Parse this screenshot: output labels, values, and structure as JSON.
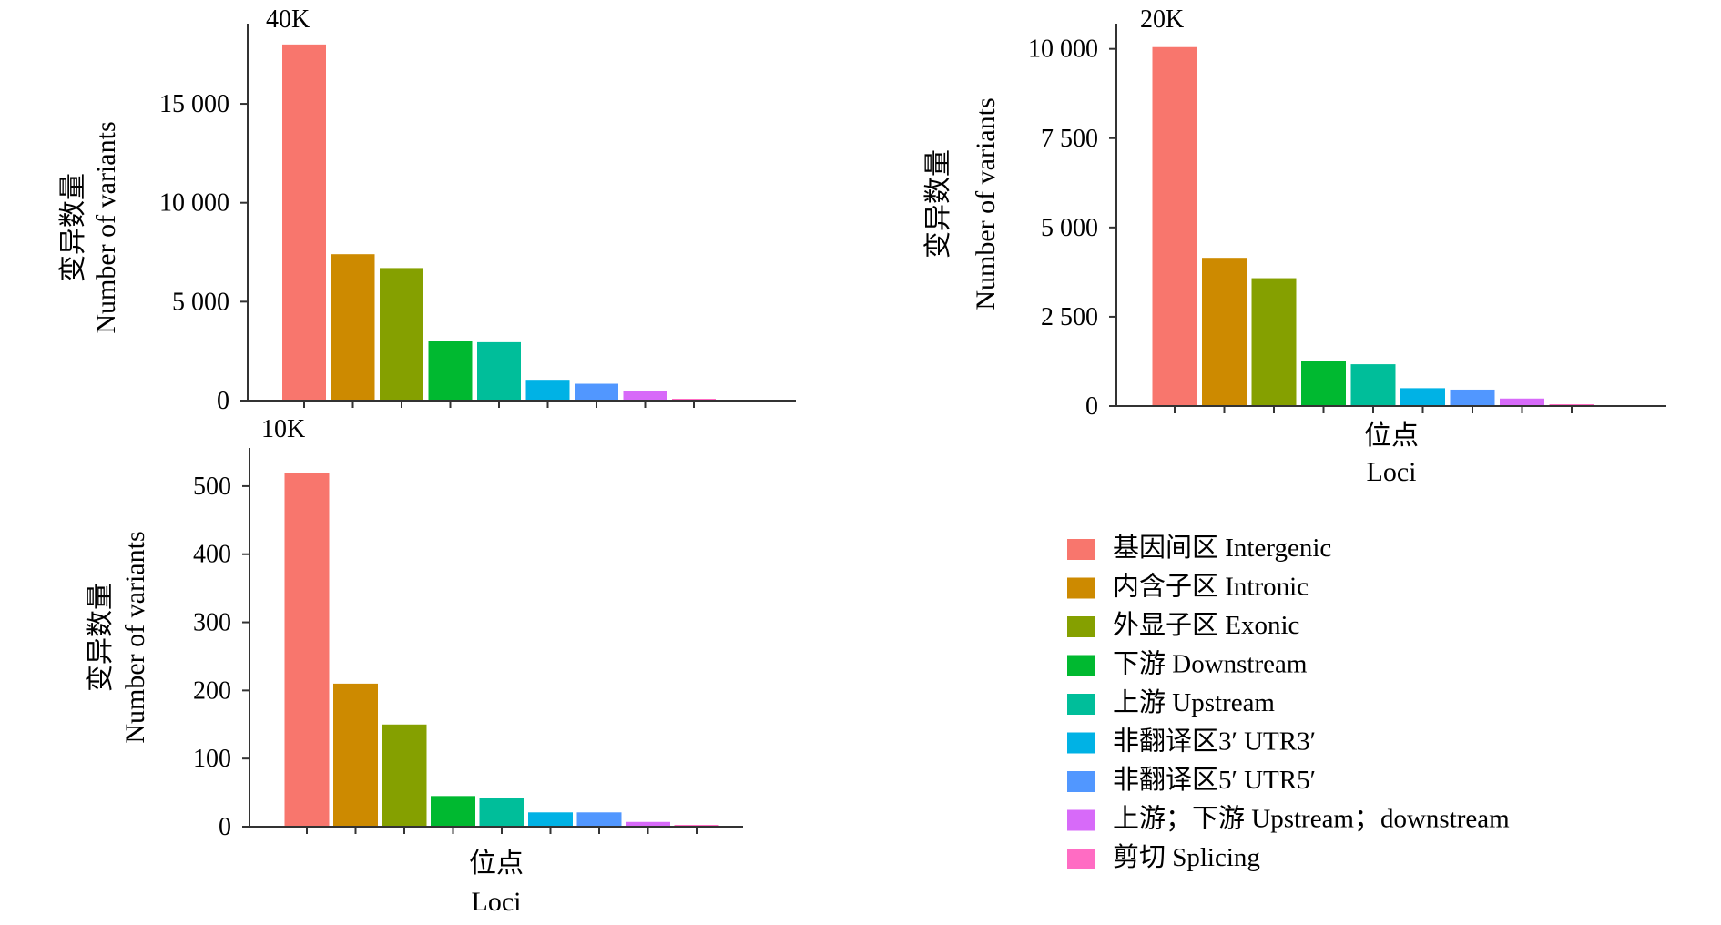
{
  "chart_data": [
    {
      "id": "panel-40k",
      "type": "bar",
      "title": "40K",
      "ylabel_zh": "变异数量",
      "ylabel_en": "Number of variants",
      "xlabel_zh": "",
      "xlabel_en": "",
      "ylim": [
        0,
        18500
      ],
      "yticks": [
        0,
        5000,
        10000,
        15000
      ],
      "ytick_labels": [
        "0",
        "5 000",
        "10 000",
        "15 000"
      ],
      "values": [
        18000,
        7400,
        6700,
        3000,
        2950,
        1050,
        850,
        500,
        50
      ]
    },
    {
      "id": "panel-20k",
      "type": "bar",
      "title": "20K",
      "ylabel_zh": "变异数量",
      "ylabel_en": "Number of variants",
      "xlabel_zh": "位点",
      "xlabel_en": "Loci",
      "ylim": [
        0,
        10400
      ],
      "yticks": [
        0,
        2500,
        5000,
        7500,
        10000
      ],
      "ytick_labels": [
        "0",
        "2 500",
        "5 000",
        "7 500",
        "10 000"
      ],
      "values": [
        10050,
        4150,
        3580,
        1270,
        1170,
        500,
        460,
        210,
        30
      ]
    },
    {
      "id": "panel-10k",
      "type": "bar",
      "title": "10K",
      "ylabel_zh": "变异数量",
      "ylabel_en": "Number of variants",
      "xlabel_zh": "位点",
      "xlabel_en": "Loci",
      "ylim": [
        0,
        540
      ],
      "yticks": [
        0,
        100,
        200,
        300,
        400,
        500
      ],
      "ytick_labels": [
        "0",
        "100",
        "200",
        "300",
        "400",
        "500"
      ],
      "values": [
        519,
        210,
        150,
        45,
        42,
        21,
        21,
        7,
        2
      ]
    }
  ],
  "categories": [
    "基因间区 Intergenic",
    "内含子区 Intronic",
    "外显子区 Exonic",
    "下游 Downstream",
    "上游 Upstream",
    "非翻译区3′ UTR3′",
    "非翻译区5′ UTR5′",
    "上游；下游 Upstream；downstream",
    "剪切 Splicing"
  ],
  "colors": [
    "#F8766D",
    "#CD8A00",
    "#85A000",
    "#00B930",
    "#00BE9A",
    "#00B2E5",
    "#5197FF",
    "#D76AF9",
    "#FF6CC3"
  ]
}
